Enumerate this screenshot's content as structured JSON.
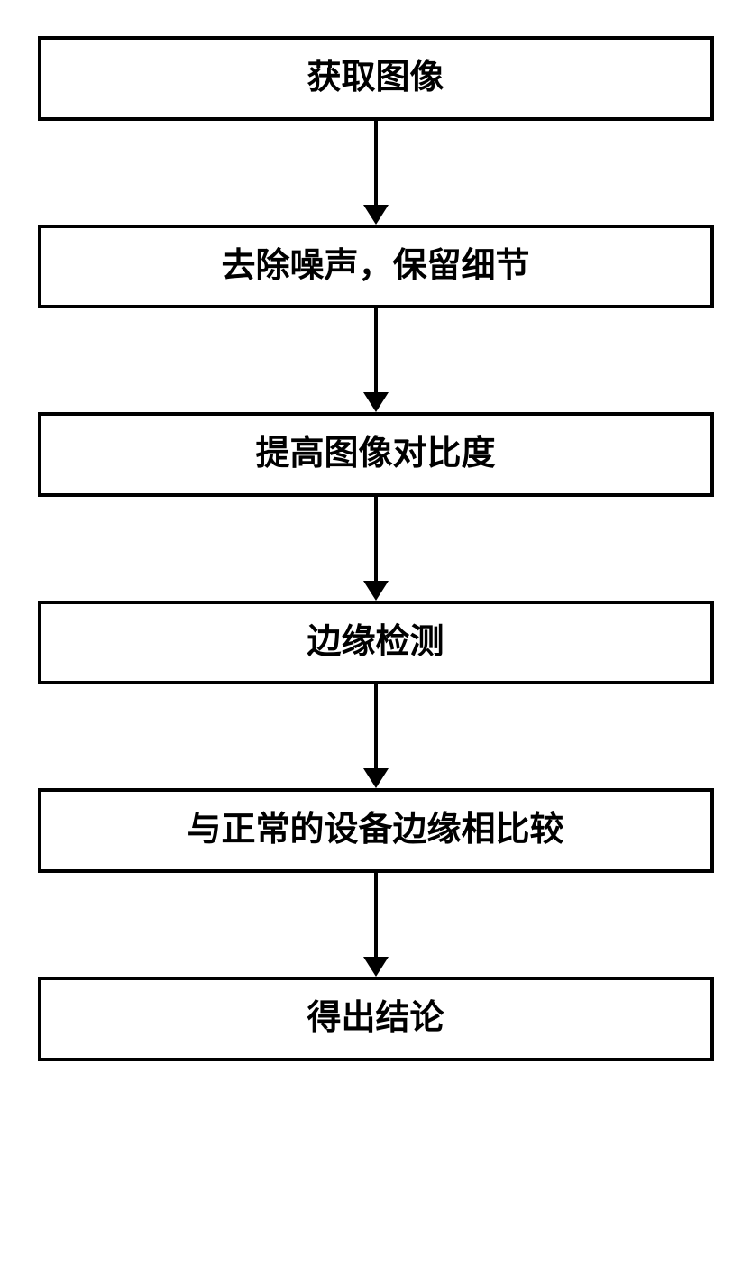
{
  "flowchart": {
    "type": "flowchart",
    "direction": "vertical",
    "background_color": "#ffffff",
    "box_border_color": "#000000",
    "box_border_width": 4,
    "box_background_color": "#ffffff",
    "text_color": "#000000",
    "font_size": 38,
    "font_weight": "bold",
    "arrow_color": "#000000",
    "arrow_line_width": 4,
    "arrow_head_size": 22,
    "arrow_height": 115,
    "nodes": [
      {
        "id": "n1",
        "label": "获取图像"
      },
      {
        "id": "n2",
        "label": "去除噪声，保留细节"
      },
      {
        "id": "n3",
        "label": "提高图像对比度"
      },
      {
        "id": "n4",
        "label": "边缘检测"
      },
      {
        "id": "n5",
        "label": "与正常的设备边缘相比较"
      },
      {
        "id": "n6",
        "label": "得出结论"
      }
    ],
    "edges": [
      {
        "from": "n1",
        "to": "n2"
      },
      {
        "from": "n2",
        "to": "n3"
      },
      {
        "from": "n3",
        "to": "n4"
      },
      {
        "from": "n4",
        "to": "n5"
      },
      {
        "from": "n5",
        "to": "n6"
      }
    ]
  }
}
